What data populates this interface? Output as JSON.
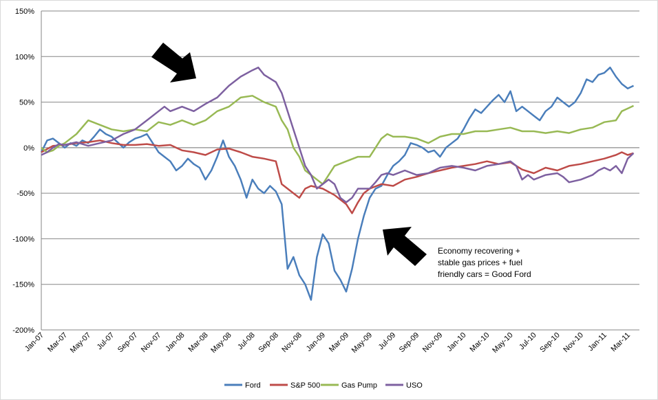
{
  "chart_data": {
    "type": "line",
    "title": "",
    "xlabel": "",
    "ylabel": "",
    "x_ticks": [
      "Jan-07",
      "Mar-07",
      "May-07",
      "Jul-07",
      "Sep-07",
      "Nov-07",
      "Jan-08",
      "Mar-08",
      "May-08",
      "Jul-08",
      "Sep-08",
      "Nov-08",
      "Jan-09",
      "Mar-09",
      "May-09",
      "Jul-09",
      "Sep-09",
      "Nov-09",
      "Jan-10",
      "Mar-10",
      "May-10",
      "Jul-10",
      "Sep-10",
      "Nov-10",
      "Jan-11",
      "Mar-11"
    ],
    "y_ticks": [
      "150%",
      "100%",
      "50%",
      "0%",
      "-50%",
      "-100%",
      "-150%",
      "-200%"
    ],
    "ylim": [
      -200,
      150
    ],
    "x_range_months": [
      0,
      51
    ],
    "grid": "horizontal",
    "legend_position": "bottom",
    "series": [
      {
        "name": "Ford",
        "color": "#4a7ebb",
        "values": [
          [
            0,
            -5
          ],
          [
            0.5,
            8
          ],
          [
            1,
            10
          ],
          [
            1.5,
            5
          ],
          [
            2,
            0
          ],
          [
            2.5,
            5
          ],
          [
            3,
            2
          ],
          [
            3.5,
            8
          ],
          [
            4,
            5
          ],
          [
            4.5,
            12
          ],
          [
            5,
            20
          ],
          [
            5.5,
            15
          ],
          [
            6,
            12
          ],
          [
            6.5,
            6
          ],
          [
            7,
            0
          ],
          [
            7.5,
            6
          ],
          [
            8,
            10
          ],
          [
            8.5,
            12
          ],
          [
            9,
            15
          ],
          [
            9.5,
            5
          ],
          [
            10,
            -5
          ],
          [
            10.5,
            -10
          ],
          [
            11,
            -15
          ],
          [
            11.5,
            -25
          ],
          [
            12,
            -20
          ],
          [
            12.5,
            -12
          ],
          [
            13,
            -18
          ],
          [
            13.5,
            -22
          ],
          [
            14,
            -35
          ],
          [
            14.5,
            -25
          ],
          [
            15,
            -10
          ],
          [
            15.5,
            8
          ],
          [
            16,
            -10
          ],
          [
            16.5,
            -20
          ],
          [
            17,
            -35
          ],
          [
            17.5,
            -55
          ],
          [
            18,
            -35
          ],
          [
            18.5,
            -45
          ],
          [
            19,
            -50
          ],
          [
            19.5,
            -42
          ],
          [
            20,
            -48
          ],
          [
            20.5,
            -62
          ],
          [
            21,
            -133
          ],
          [
            21.5,
            -120
          ],
          [
            22,
            -140
          ],
          [
            22.5,
            -150
          ],
          [
            23,
            -167
          ],
          [
            23.5,
            -120
          ],
          [
            24,
            -95
          ],
          [
            24.5,
            -105
          ],
          [
            25,
            -135
          ],
          [
            25.5,
            -145
          ],
          [
            26,
            -158
          ],
          [
            26.5,
            -133
          ],
          [
            27,
            -100
          ],
          [
            27.5,
            -75
          ],
          [
            28,
            -55
          ],
          [
            28.5,
            -45
          ],
          [
            29,
            -42
          ],
          [
            29.5,
            -30
          ],
          [
            30,
            -20
          ],
          [
            30.5,
            -15
          ],
          [
            31,
            -8
          ],
          [
            31.5,
            5
          ],
          [
            32,
            3
          ],
          [
            32.5,
            0
          ],
          [
            33,
            -5
          ],
          [
            33.5,
            -3
          ],
          [
            34,
            -10
          ],
          [
            34.5,
            0
          ],
          [
            35,
            5
          ],
          [
            35.5,
            10
          ],
          [
            36,
            20
          ],
          [
            36.5,
            32
          ],
          [
            37,
            42
          ],
          [
            37.5,
            38
          ],
          [
            38,
            45
          ],
          [
            38.5,
            52
          ],
          [
            39,
            58
          ],
          [
            39.5,
            50
          ],
          [
            40,
            62
          ],
          [
            40.5,
            40
          ],
          [
            41,
            45
          ],
          [
            41.5,
            40
          ],
          [
            42,
            35
          ],
          [
            42.5,
            30
          ],
          [
            43,
            40
          ],
          [
            43.5,
            45
          ],
          [
            44,
            55
          ],
          [
            44.5,
            50
          ],
          [
            45,
            45
          ],
          [
            45.5,
            50
          ],
          [
            46,
            60
          ],
          [
            46.5,
            75
          ],
          [
            47,
            72
          ],
          [
            47.5,
            80
          ],
          [
            48,
            82
          ],
          [
            48.5,
            88
          ],
          [
            49,
            78
          ],
          [
            49.5,
            70
          ],
          [
            50,
            65
          ],
          [
            50.5,
            68
          ]
        ]
      },
      {
        "name": "S&P 500",
        "color": "#be4b48",
        "values": [
          [
            0,
            -5
          ],
          [
            1,
            2
          ],
          [
            2,
            3
          ],
          [
            3,
            5
          ],
          [
            4,
            6
          ],
          [
            5,
            8
          ],
          [
            6,
            5
          ],
          [
            7,
            3
          ],
          [
            8,
            3
          ],
          [
            9,
            4
          ],
          [
            10,
            2
          ],
          [
            11,
            3
          ],
          [
            12,
            -3
          ],
          [
            13,
            -5
          ],
          [
            14,
            -8
          ],
          [
            15,
            -2
          ],
          [
            16,
            -1
          ],
          [
            17,
            -5
          ],
          [
            18,
            -10
          ],
          [
            19,
            -12
          ],
          [
            20,
            -15
          ],
          [
            20.5,
            -40
          ],
          [
            21,
            -45
          ],
          [
            21.5,
            -50
          ],
          [
            22,
            -55
          ],
          [
            22.5,
            -45
          ],
          [
            23,
            -42
          ],
          [
            24,
            -45
          ],
          [
            25,
            -52
          ],
          [
            26,
            -62
          ],
          [
            26.5,
            -72
          ],
          [
            27,
            -60
          ],
          [
            27.5,
            -50
          ],
          [
            28,
            -45
          ],
          [
            29,
            -40
          ],
          [
            30,
            -42
          ],
          [
            31,
            -35
          ],
          [
            32,
            -32
          ],
          [
            33,
            -28
          ],
          [
            34,
            -25
          ],
          [
            35,
            -22
          ],
          [
            36,
            -20
          ],
          [
            37,
            -18
          ],
          [
            38,
            -15
          ],
          [
            39,
            -18
          ],
          [
            40,
            -16
          ],
          [
            41,
            -24
          ],
          [
            42,
            -28
          ],
          [
            43,
            -22
          ],
          [
            44,
            -25
          ],
          [
            45,
            -20
          ],
          [
            46,
            -18
          ],
          [
            47,
            -15
          ],
          [
            48,
            -12
          ],
          [
            49,
            -8
          ],
          [
            49.5,
            -5
          ],
          [
            50,
            -8
          ],
          [
            50.5,
            -6
          ]
        ]
      },
      {
        "name": "Gas Pump",
        "color": "#98b954",
        "values": [
          [
            0,
            0
          ],
          [
            0.5,
            -5
          ],
          [
            1,
            -3
          ],
          [
            1.5,
            2
          ],
          [
            2,
            5
          ],
          [
            3,
            15
          ],
          [
            4,
            30
          ],
          [
            5,
            25
          ],
          [
            6,
            20
          ],
          [
            7,
            18
          ],
          [
            8,
            20
          ],
          [
            9,
            18
          ],
          [
            10,
            28
          ],
          [
            11,
            25
          ],
          [
            12,
            30
          ],
          [
            13,
            25
          ],
          [
            14,
            30
          ],
          [
            15,
            40
          ],
          [
            16,
            45
          ],
          [
            17,
            55
          ],
          [
            18,
            57
          ],
          [
            19,
            50
          ],
          [
            20,
            45
          ],
          [
            20.5,
            30
          ],
          [
            21,
            20
          ],
          [
            21.5,
            0
          ],
          [
            22,
            -10
          ],
          [
            22.5,
            -25
          ],
          [
            23,
            -30
          ],
          [
            23.5,
            -35
          ],
          [
            24,
            -40
          ],
          [
            24.5,
            -30
          ],
          [
            25,
            -20
          ],
          [
            26,
            -15
          ],
          [
            27,
            -10
          ],
          [
            28,
            -10
          ],
          [
            28.5,
            0
          ],
          [
            29,
            10
          ],
          [
            29.5,
            15
          ],
          [
            30,
            12
          ],
          [
            31,
            12
          ],
          [
            32,
            10
          ],
          [
            33,
            5
          ],
          [
            34,
            12
          ],
          [
            35,
            15
          ],
          [
            36,
            15
          ],
          [
            37,
            18
          ],
          [
            38,
            18
          ],
          [
            39,
            20
          ],
          [
            40,
            22
          ],
          [
            41,
            18
          ],
          [
            42,
            18
          ],
          [
            43,
            16
          ],
          [
            44,
            18
          ],
          [
            45,
            16
          ],
          [
            46,
            20
          ],
          [
            47,
            22
          ],
          [
            48,
            28
          ],
          [
            49,
            30
          ],
          [
            49.5,
            40
          ],
          [
            50,
            43
          ],
          [
            50.5,
            46
          ]
        ]
      },
      {
        "name": "USO",
        "color": "#7d60a0",
        "values": [
          [
            0,
            -8
          ],
          [
            0.5,
            -5
          ],
          [
            1,
            0
          ],
          [
            1.5,
            4
          ],
          [
            2,
            3
          ],
          [
            3,
            6
          ],
          [
            4,
            2
          ],
          [
            5,
            5
          ],
          [
            6,
            8
          ],
          [
            7,
            15
          ],
          [
            8,
            20
          ],
          [
            9,
            30
          ],
          [
            10,
            40
          ],
          [
            10.5,
            45
          ],
          [
            11,
            40
          ],
          [
            12,
            45
          ],
          [
            13,
            40
          ],
          [
            14,
            48
          ],
          [
            15,
            55
          ],
          [
            16,
            68
          ],
          [
            17,
            78
          ],
          [
            18,
            85
          ],
          [
            18.5,
            88
          ],
          [
            19,
            80
          ],
          [
            20,
            72
          ],
          [
            20.5,
            60
          ],
          [
            21,
            40
          ],
          [
            21.5,
            20
          ],
          [
            22,
            0
          ],
          [
            22.5,
            -20
          ],
          [
            23,
            -30
          ],
          [
            23.5,
            -45
          ],
          [
            24,
            -40
          ],
          [
            24.5,
            -35
          ],
          [
            25,
            -40
          ],
          [
            25.5,
            -55
          ],
          [
            26,
            -60
          ],
          [
            26.5,
            -55
          ],
          [
            27,
            -45
          ],
          [
            28,
            -45
          ],
          [
            28.5,
            -38
          ],
          [
            29,
            -30
          ],
          [
            29.5,
            -28
          ],
          [
            30,
            -30
          ],
          [
            31,
            -25
          ],
          [
            32,
            -30
          ],
          [
            33,
            -28
          ],
          [
            34,
            -22
          ],
          [
            35,
            -20
          ],
          [
            36,
            -22
          ],
          [
            37,
            -25
          ],
          [
            38,
            -20
          ],
          [
            39,
            -18
          ],
          [
            40,
            -15
          ],
          [
            40.5,
            -20
          ],
          [
            41,
            -35
          ],
          [
            41.5,
            -30
          ],
          [
            42,
            -35
          ],
          [
            43,
            -30
          ],
          [
            44,
            -28
          ],
          [
            44.5,
            -32
          ],
          [
            45,
            -38
          ],
          [
            46,
            -35
          ],
          [
            47,
            -30
          ],
          [
            47.5,
            -25
          ],
          [
            48,
            -22
          ],
          [
            48.5,
            -25
          ],
          [
            49,
            -20
          ],
          [
            49.5,
            -28
          ],
          [
            50,
            -12
          ],
          [
            50.5,
            -6
          ]
        ]
      }
    ]
  },
  "annotation": {
    "lines": [
      "Economy recovering +",
      "stable gas prices + fuel",
      "friendly cars = Good Ford"
    ]
  }
}
